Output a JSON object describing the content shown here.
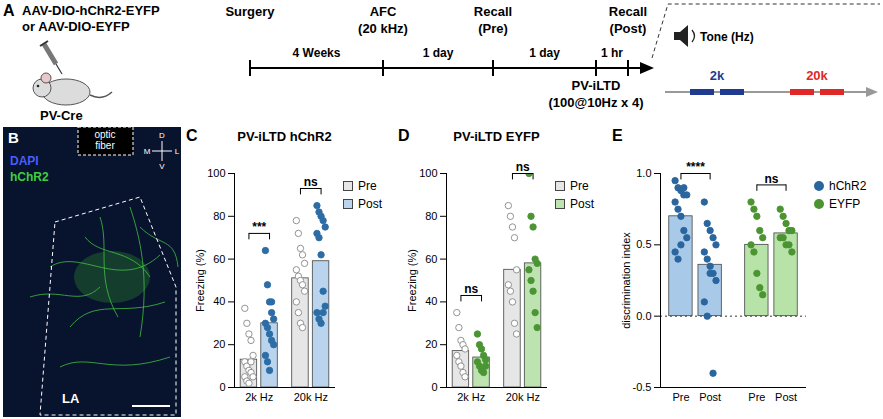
{
  "panel_a": {
    "label": "A",
    "virus": [
      "AAV-DIO-hChR2-EYFP",
      "or AAV-DIO-EYFP"
    ],
    "mouse": "PV-Cre",
    "timeline": {
      "events": [
        {
          "text": [
            "Surgery"
          ],
          "side": "above"
        },
        {
          "text": [
            "AFC",
            "(20 kHz)"
          ],
          "side": "above"
        },
        {
          "text": [
            "Recall",
            "(Pre)"
          ],
          "side": "above"
        },
        {
          "text": [
            "PV-iLTD",
            "(100@10Hz x 4)"
          ],
          "side": "below"
        },
        {
          "text": [
            "Recall",
            "(Post)"
          ],
          "side": "above"
        }
      ],
      "intervals": [
        "4 Weeks",
        "1 day",
        "1 day",
        "1 hr"
      ]
    },
    "tone": {
      "title": "Tone (Hz)",
      "tones": [
        {
          "label": "2k",
          "color": "#1f3a8f"
        },
        {
          "label": "20k",
          "color": "#e02828"
        }
      ]
    }
  },
  "panel_b": {
    "label": "B",
    "stains": [
      {
        "text": "DAPI",
        "color": "#4a5cff"
      },
      {
        "text": "hChR2",
        "color": "#3fcf3f"
      }
    ],
    "fiber": [
      "optic",
      "fiber"
    ],
    "region": "LA",
    "compass": {
      "up": "D",
      "down": "V",
      "left": "M",
      "right": "L"
    }
  },
  "panel_letters": [
    "C",
    "D",
    "E"
  ],
  "chart_data": [
    {
      "type": "bar",
      "title": "PV-iLTD hChR2",
      "ylabel": "Freezing (%)",
      "categories": [
        "2k Hz",
        "20k Hz"
      ],
      "ylim": [
        0,
        100
      ],
      "yticks": [
        0,
        20,
        40,
        60,
        80,
        100
      ],
      "legend": "right",
      "series": [
        {
          "name": "Pre",
          "color": "#e6e6e6",
          "values": [
            13,
            51
          ],
          "points": [
            [
              37,
              30,
              25,
              22,
              15,
              12,
              10,
              8,
              7,
              5,
              5,
              3,
              2,
              12
            ],
            [
              78,
              72,
              65,
              62,
              58,
              55,
              52,
              50,
              48,
              45,
              40,
              35,
              30,
              28
            ]
          ]
        },
        {
          "name": "Post",
          "color": "#b9d4ec",
          "values": [
            30,
            59
          ],
          "points": [
            [
              64,
              48,
              40,
              35,
              32,
              30,
              28,
              25,
              22,
              20,
              15,
              12,
              8,
              40
            ],
            [
              85,
              82,
              80,
              78,
              75,
              72,
              70,
              62,
              45,
              38,
              35,
              32,
              30,
              35
            ]
          ]
        }
      ],
      "annotations": [
        {
          "text": "***",
          "category": "2k Hz"
        },
        {
          "text": "ns",
          "category": "20k Hz"
        }
      ]
    },
    {
      "type": "bar",
      "title": "PV-iLTD EYFP",
      "ylabel": "Freezing (%)",
      "categories": [
        "2k Hz",
        "20k Hz"
      ],
      "ylim": [
        0,
        100
      ],
      "yticks": [
        0,
        20,
        40,
        60,
        80,
        100
      ],
      "legend": "right",
      "series": [
        {
          "name": "Pre",
          "color": "#e6e6e6",
          "values": [
            17,
            55
          ],
          "points": [
            [
              35,
              28,
              22,
              20,
              18,
              15,
              12,
              10,
              7,
              5
            ],
            [
              85,
              80,
              75,
              70,
              55,
              48,
              45,
              40,
              30,
              25
            ]
          ]
        },
        {
          "name": "Post",
          "color": "#bde3b1",
          "values": [
            14,
            58
          ],
          "points": [
            [
              25,
              20,
              18,
              15,
              13,
              12,
              10,
              8,
              7,
              10
            ],
            [
              100,
              80,
              75,
              60,
              58,
              55,
              50,
              45,
              35,
              28
            ]
          ]
        }
      ],
      "annotations": [
        {
          "text": "ns",
          "category": "2k Hz"
        },
        {
          "text": "ns",
          "category": "20k Hz"
        }
      ]
    },
    {
      "type": "bar",
      "ylabel": "discrimination index",
      "categories": [
        "Pre",
        "Post",
        "Pre",
        "Post"
      ],
      "ylim": [
        -0.5,
        1.0
      ],
      "yticks": [
        -0.5,
        {
          "value": 0,
          "label": "0.0"
        },
        0.5,
        {
          "value": 1,
          "label": "1.0"
        }
      ],
      "legend": "right",
      "series": [
        {
          "name": "hChR2",
          "color": "#a9c9e8",
          "marker": "circle",
          "values": [
            0.7,
            0.36,
            null,
            null
          ],
          "points": [
            [
              0.95,
              0.9,
              0.88,
              0.85,
              0.85,
              0.8,
              0.75,
              0.7,
              0.6,
              0.55,
              0.45,
              0.4,
              0.5,
              0.9
            ],
            [
              0.8,
              0.65,
              0.6,
              0.55,
              0.5,
              0.45,
              0.4,
              0.35,
              0.3,
              0.25,
              0.1,
              0.0,
              0.3,
              -0.4
            ],
            null,
            null
          ]
        },
        {
          "name": "EYFP",
          "color": "#b7e2a8",
          "marker": "circle",
          "values": [
            null,
            null,
            0.5,
            0.58
          ],
          "points": [
            null,
            null,
            [
              0.8,
              0.75,
              0.7,
              0.6,
              0.55,
              0.5,
              0.45,
              0.3,
              0.2,
              0.15
            ],
            [
              0.75,
              0.7,
              0.65,
              0.6,
              0.6,
              0.55,
              0.55,
              0.5,
              0.5,
              0.45
            ]
          ]
        }
      ],
      "annotations": [
        {
          "text": "****",
          "series": "hChR2"
        },
        {
          "text": "ns",
          "series": "EYFP"
        }
      ]
    }
  ]
}
